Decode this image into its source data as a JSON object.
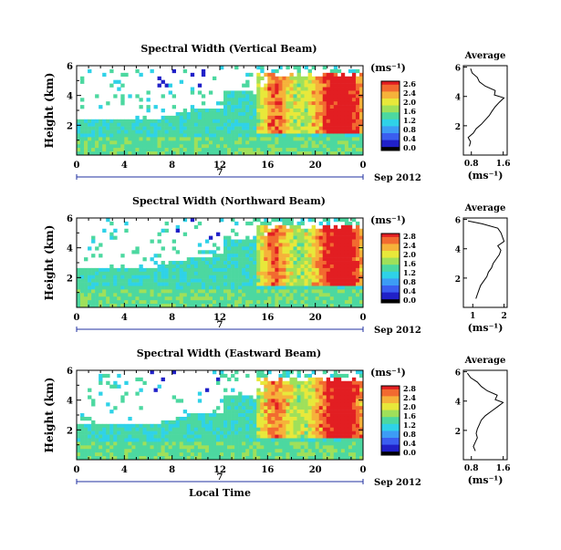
{
  "chart_data": {
    "type": "heatmap",
    "panels": [
      {
        "title": "Spectral Width (Vertical Beam)",
        "ylabel": "Height (km)",
        "y_ticks": [
          "6",
          "4",
          "2"
        ],
        "x_ticks": [
          "0",
          "4",
          "8",
          "12",
          "16",
          "20",
          "0"
        ],
        "date_marker": "7",
        "date_label": "Sep 2012",
        "colorbar_unit": "(ms⁻¹)",
        "colorbar_ticks": [
          "2.6",
          "2.4",
          "2.0",
          "1.6",
          "1.2",
          "0.8",
          "0.4",
          "0.0"
        ],
        "avg_title": "Average",
        "avg_y_ticks": [
          "6",
          "4",
          "2"
        ],
        "avg_x_ticks": [
          "0.8",
          "1.6"
        ],
        "avg_xlabel": "(ms⁻¹)",
        "avg_xlim": [
          0.6,
          1.7
        ],
        "average_profile": {
          "height_km": [
            0.6,
            0.9,
            1.2,
            1.5,
            1.8,
            2.1,
            2.4,
            2.7,
            3.0,
            3.3,
            3.6,
            3.9,
            4.1,
            4.4,
            4.7,
            5.0,
            5.3,
            5.6,
            5.9
          ],
          "width_ms": [
            0.75,
            0.78,
            0.72,
            0.85,
            0.92,
            1.05,
            1.15,
            1.25,
            1.32,
            1.4,
            1.5,
            1.62,
            1.38,
            1.4,
            1.15,
            1.0,
            0.95,
            0.82,
            0.78
          ]
        }
      },
      {
        "title": "Spectral Width (Northward Beam)",
        "ylabel": "Height (km)",
        "y_ticks": [
          "6",
          "4",
          "2"
        ],
        "x_ticks": [
          "0",
          "4",
          "8",
          "12",
          "16",
          "20",
          "0"
        ],
        "date_marker": "7",
        "date_label": "Sep 2012",
        "colorbar_unit": "(ms⁻¹)",
        "colorbar_ticks": [
          "2.8",
          "2.4",
          "2.0",
          "1.6",
          "1.2",
          "0.8",
          "0.4",
          "0.0"
        ],
        "avg_title": "Average",
        "avg_y_ticks": [
          "6",
          "4",
          "2"
        ],
        "avg_x_ticks": [
          "1",
          "2"
        ],
        "avg_xlabel": "(ms⁻¹)",
        "avg_xlim": [
          0.7,
          2.1
        ],
        "average_profile": {
          "height_km": [
            0.6,
            0.9,
            1.2,
            1.5,
            1.8,
            2.1,
            2.4,
            2.7,
            3.0,
            3.3,
            3.6,
            3.9,
            4.2,
            4.5,
            4.8,
            5.1,
            5.4,
            5.7,
            5.9
          ],
          "width_ms": [
            1.1,
            1.15,
            1.2,
            1.25,
            1.35,
            1.45,
            1.5,
            1.6,
            1.65,
            1.75,
            1.85,
            1.9,
            1.8,
            2.0,
            1.95,
            1.9,
            1.8,
            1.3,
            0.85
          ]
        }
      },
      {
        "title": "Spectral Width (Eastward Beam)",
        "ylabel": "Height (km)",
        "y_ticks": [
          "6",
          "4",
          "2"
        ],
        "x_ticks": [
          "0",
          "4",
          "8",
          "12",
          "16",
          "20",
          "0"
        ],
        "date_marker": "7",
        "date_label": "Sep 2012",
        "xlabel": "Local Time",
        "colorbar_unit": "(ms⁻¹)",
        "colorbar_ticks": [
          "2.8",
          "2.4",
          "2.0",
          "1.6",
          "1.2",
          "0.8",
          "0.4",
          "0.0"
        ],
        "avg_title": "Average",
        "avg_y_ticks": [
          "6",
          "4",
          "2"
        ],
        "avg_x_ticks": [
          "0.8",
          "1.6"
        ],
        "avg_xlabel": "(ms⁻¹)",
        "avg_xlim": [
          0.6,
          1.7
        ],
        "average_profile": {
          "height_km": [
            0.6,
            0.9,
            1.2,
            1.5,
            1.8,
            2.1,
            2.4,
            2.7,
            3.0,
            3.3,
            3.6,
            3.9,
            4.1,
            4.4,
            4.7,
            5.0,
            5.3,
            5.6,
            5.9
          ],
          "width_ms": [
            0.9,
            0.85,
            0.9,
            0.95,
            0.92,
            0.95,
            1.0,
            1.05,
            1.15,
            1.3,
            1.45,
            1.6,
            1.4,
            1.45,
            1.2,
            1.05,
            0.95,
            0.78,
            0.7
          ]
        }
      }
    ],
    "colormap": [
      "#000000",
      "#2020c8",
      "#3a5ef0",
      "#3d9cf5",
      "#2fd2e8",
      "#4cd8a0",
      "#9fe05a",
      "#e8e83a",
      "#f6b23a",
      "#f26a30",
      "#e21e22"
    ]
  }
}
